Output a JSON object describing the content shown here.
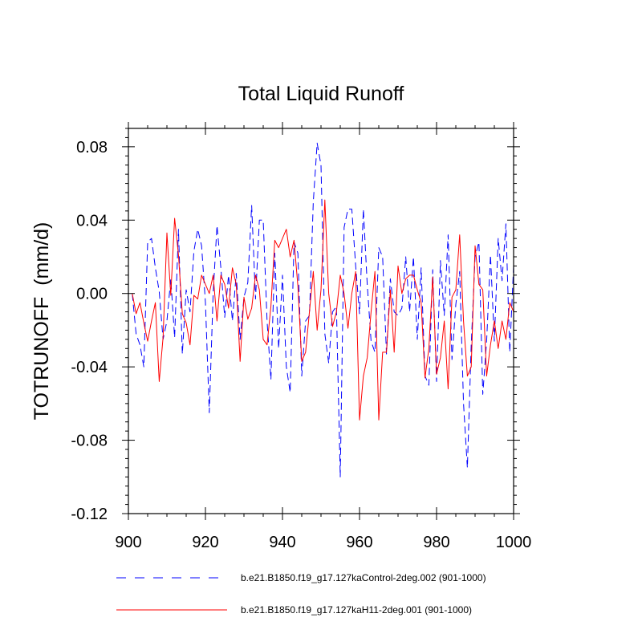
{
  "chart_data": {
    "type": "line",
    "title": "Total Liquid Runoff",
    "xlabel": "",
    "ylabel": "TOTRUNOFF  (mm/d)",
    "xlim": [
      900,
      1000
    ],
    "ylim": [
      -0.12,
      0.09
    ],
    "x_ticks": [
      900,
      920,
      940,
      960,
      980,
      1000
    ],
    "x_tick_labels": [
      "900",
      "920",
      "940",
      "960",
      "980",
      "1000"
    ],
    "y_ticks": [
      -0.12,
      -0.08,
      -0.04,
      0.0,
      0.04,
      0.08
    ],
    "y_tick_labels": [
      "-0.12",
      "-0.08",
      "-0.04",
      "0.00",
      "0.04",
      "0.08"
    ],
    "legend_position": "bottom",
    "series": [
      {
        "name": "b.e21.B1850.f19_g17.127kaControl-2deg.002 (901-1000)",
        "color": "#0000ff",
        "style": "dashed",
        "x": [
          901,
          902,
          903,
          904,
          905,
          906,
          907,
          908,
          909,
          910,
          911,
          912,
          913,
          914,
          915,
          916,
          917,
          918,
          919,
          920,
          921,
          922,
          923,
          924,
          925,
          926,
          927,
          928,
          929,
          930,
          931,
          932,
          933,
          934,
          935,
          936,
          937,
          938,
          939,
          940,
          941,
          942,
          943,
          944,
          945,
          946,
          947,
          948,
          949,
          950,
          951,
          952,
          953,
          954,
          955,
          956,
          957,
          958,
          959,
          960,
          961,
          962,
          963,
          964,
          965,
          966,
          967,
          968,
          969,
          970,
          971,
          972,
          973,
          974,
          975,
          976,
          977,
          978,
          979,
          980,
          981,
          982,
          983,
          984,
          985,
          986,
          987,
          988,
          989,
          990,
          991,
          992,
          993,
          994,
          995,
          996,
          997,
          998,
          999,
          1000
        ],
        "values": [
          0.0,
          -0.022,
          -0.028,
          -0.04,
          0.028,
          0.03,
          0.014,
          0.001,
          -0.025,
          -0.015,
          0.008,
          -0.024,
          0.035,
          -0.033,
          0.002,
          -0.01,
          0.023,
          0.035,
          0.026,
          -0.005,
          -0.065,
          0.0,
          0.037,
          0.014,
          -0.013,
          0.01,
          -0.015,
          0.011,
          -0.025,
          -0.002,
          0.006,
          0.048,
          -0.003,
          0.04,
          0.04,
          -0.015,
          -0.047,
          0.022,
          -0.03,
          0.01,
          -0.04,
          -0.054,
          0.028,
          0.022,
          -0.045,
          -0.015,
          -0.012,
          0.05,
          0.082,
          0.07,
          -0.022,
          -0.038,
          -0.01,
          -0.007,
          -0.1,
          0.036,
          0.046,
          0.046,
          0.015,
          -0.011,
          0.046,
          0.005,
          -0.026,
          -0.032,
          0.025,
          0.02,
          -0.033,
          0.008,
          -0.01,
          -0.012,
          -0.008,
          0.02,
          -0.01,
          0.02,
          -0.025,
          0.014,
          -0.045,
          -0.05,
          0.013,
          -0.048,
          0.018,
          -0.012,
          0.032,
          -0.036,
          -0.006,
          0.012,
          -0.06,
          -0.095,
          -0.028,
          0.02,
          0.028,
          -0.055,
          -0.026,
          0.021,
          -0.026,
          0.03,
          0.007,
          0.038,
          -0.032,
          0.015
        ]
      },
      {
        "name": "b.e21.B1850.f19_g17.127kaH11-2deg.001 (901-1000)",
        "color": "#ff0000",
        "style": "solid",
        "x": [
          901,
          902,
          903,
          904,
          905,
          906,
          907,
          908,
          909,
          910,
          911,
          912,
          913,
          914,
          915,
          916,
          917,
          918,
          919,
          920,
          921,
          922,
          923,
          924,
          925,
          926,
          927,
          928,
          929,
          930,
          931,
          932,
          933,
          934,
          935,
          936,
          937,
          938,
          939,
          940,
          941,
          942,
          943,
          944,
          945,
          946,
          947,
          948,
          949,
          950,
          951,
          952,
          953,
          954,
          955,
          956,
          957,
          958,
          959,
          960,
          961,
          962,
          963,
          964,
          965,
          966,
          967,
          968,
          969,
          970,
          971,
          972,
          973,
          974,
          975,
          976,
          977,
          978,
          979,
          980,
          981,
          982,
          983,
          984,
          985,
          986,
          987,
          988,
          989,
          990,
          991,
          992,
          993,
          994,
          995,
          996,
          997,
          998,
          999,
          1000
        ],
        "values": [
          0.0,
          -0.011,
          -0.005,
          -0.016,
          -0.026,
          -0.015,
          -0.005,
          -0.048,
          -0.024,
          0.033,
          -0.001,
          0.041,
          0.021,
          -0.011,
          -0.016,
          -0.028,
          -0.001,
          -0.003,
          0.01,
          0.005,
          0.0,
          0.01,
          -0.015,
          0.01,
          0.005,
          -0.008,
          0.014,
          0.005,
          -0.037,
          -0.002,
          -0.014,
          -0.008,
          0.01,
          0.002,
          -0.025,
          -0.028,
          -0.007,
          0.029,
          0.025,
          0.03,
          0.035,
          0.02,
          0.029,
          0.004,
          -0.037,
          -0.032,
          -0.01,
          0.012,
          -0.02,
          0.002,
          0.051,
          0.0,
          -0.018,
          -0.01,
          0.01,
          0.0,
          -0.019,
          0.0,
          0.012,
          -0.069,
          -0.045,
          -0.035,
          -0.01,
          0.012,
          -0.069,
          -0.032,
          -0.032,
          0.002,
          -0.032,
          0.015,
          0.0,
          0.008,
          0.01,
          0.01,
          0.002,
          -0.005,
          -0.046,
          -0.03,
          0.009,
          -0.044,
          -0.035,
          -0.015,
          -0.052,
          -0.002,
          0.002,
          0.032,
          -0.015,
          -0.045,
          -0.04,
          0.026,
          0.005,
          0.002,
          -0.045,
          -0.028,
          -0.015,
          -0.03,
          -0.015,
          -0.025,
          -0.005,
          -0.01
        ]
      }
    ]
  }
}
